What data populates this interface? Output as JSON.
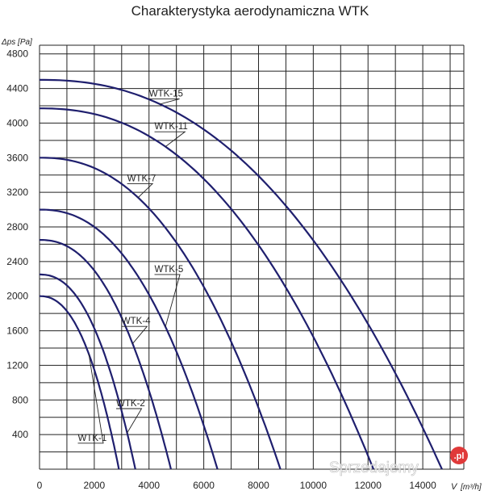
{
  "chart_data": {
    "type": "line",
    "title": "Charakterystyka aerodynamiczna WTK",
    "ylabel": "Δps [Pa]",
    "xlabel_symbol": "V",
    "xlabel_unit": "[m³/h]",
    "xlim": [
      0,
      15500
    ],
    "ylim": [
      0,
      4900
    ],
    "x_ticks": [
      0,
      2000,
      4000,
      6000,
      8000,
      10000,
      12000,
      14000
    ],
    "y_ticks": [
      400,
      800,
      1200,
      1600,
      2000,
      2400,
      2800,
      3200,
      3600,
      4000,
      4400,
      4800
    ],
    "x_tick_labels": [
      "0",
      "2000",
      "4000",
      "6000",
      "8000",
      "10000",
      "12000",
      "14000"
    ],
    "y_tick_labels": [
      "400",
      "800",
      "1200",
      "1600",
      "2000",
      "2400",
      "2800",
      "3200",
      "3600",
      "4000",
      "4400",
      "4800"
    ],
    "grid": true,
    "series": [
      {
        "name": "WTK-1",
        "y0": 2000,
        "x_max": 2900,
        "label_at": [
          1400,
          300
        ]
      },
      {
        "name": "WTK-2",
        "y0": 2250,
        "x_max": 3500,
        "label_at": [
          2800,
          700
        ]
      },
      {
        "name": "WTK-4",
        "y0": 2650,
        "x_max": 4800,
        "label_at": [
          3000,
          1650
        ]
      },
      {
        "name": "WTK-5",
        "y0": 3000,
        "x_max": 6500,
        "label_at": [
          4200,
          2250
        ]
      },
      {
        "name": "WTK-7",
        "y0": 3600,
        "x_max": 8800,
        "label_at": [
          3200,
          3300
        ]
      },
      {
        "name": "WTK-11",
        "y0": 4170,
        "x_max": 12200,
        "label_at": [
          4200,
          3900
        ]
      },
      {
        "name": "WTK-15",
        "y0": 4500,
        "x_max": 14700,
        "label_at": [
          4000,
          4280
        ]
      }
    ]
  },
  "watermark": {
    "text": "Sprzedajemy",
    "badge": ".pl"
  },
  "colors": {
    "curve": "#1f1f6e",
    "grid": "#222222",
    "watermark": "#e03a3a"
  }
}
